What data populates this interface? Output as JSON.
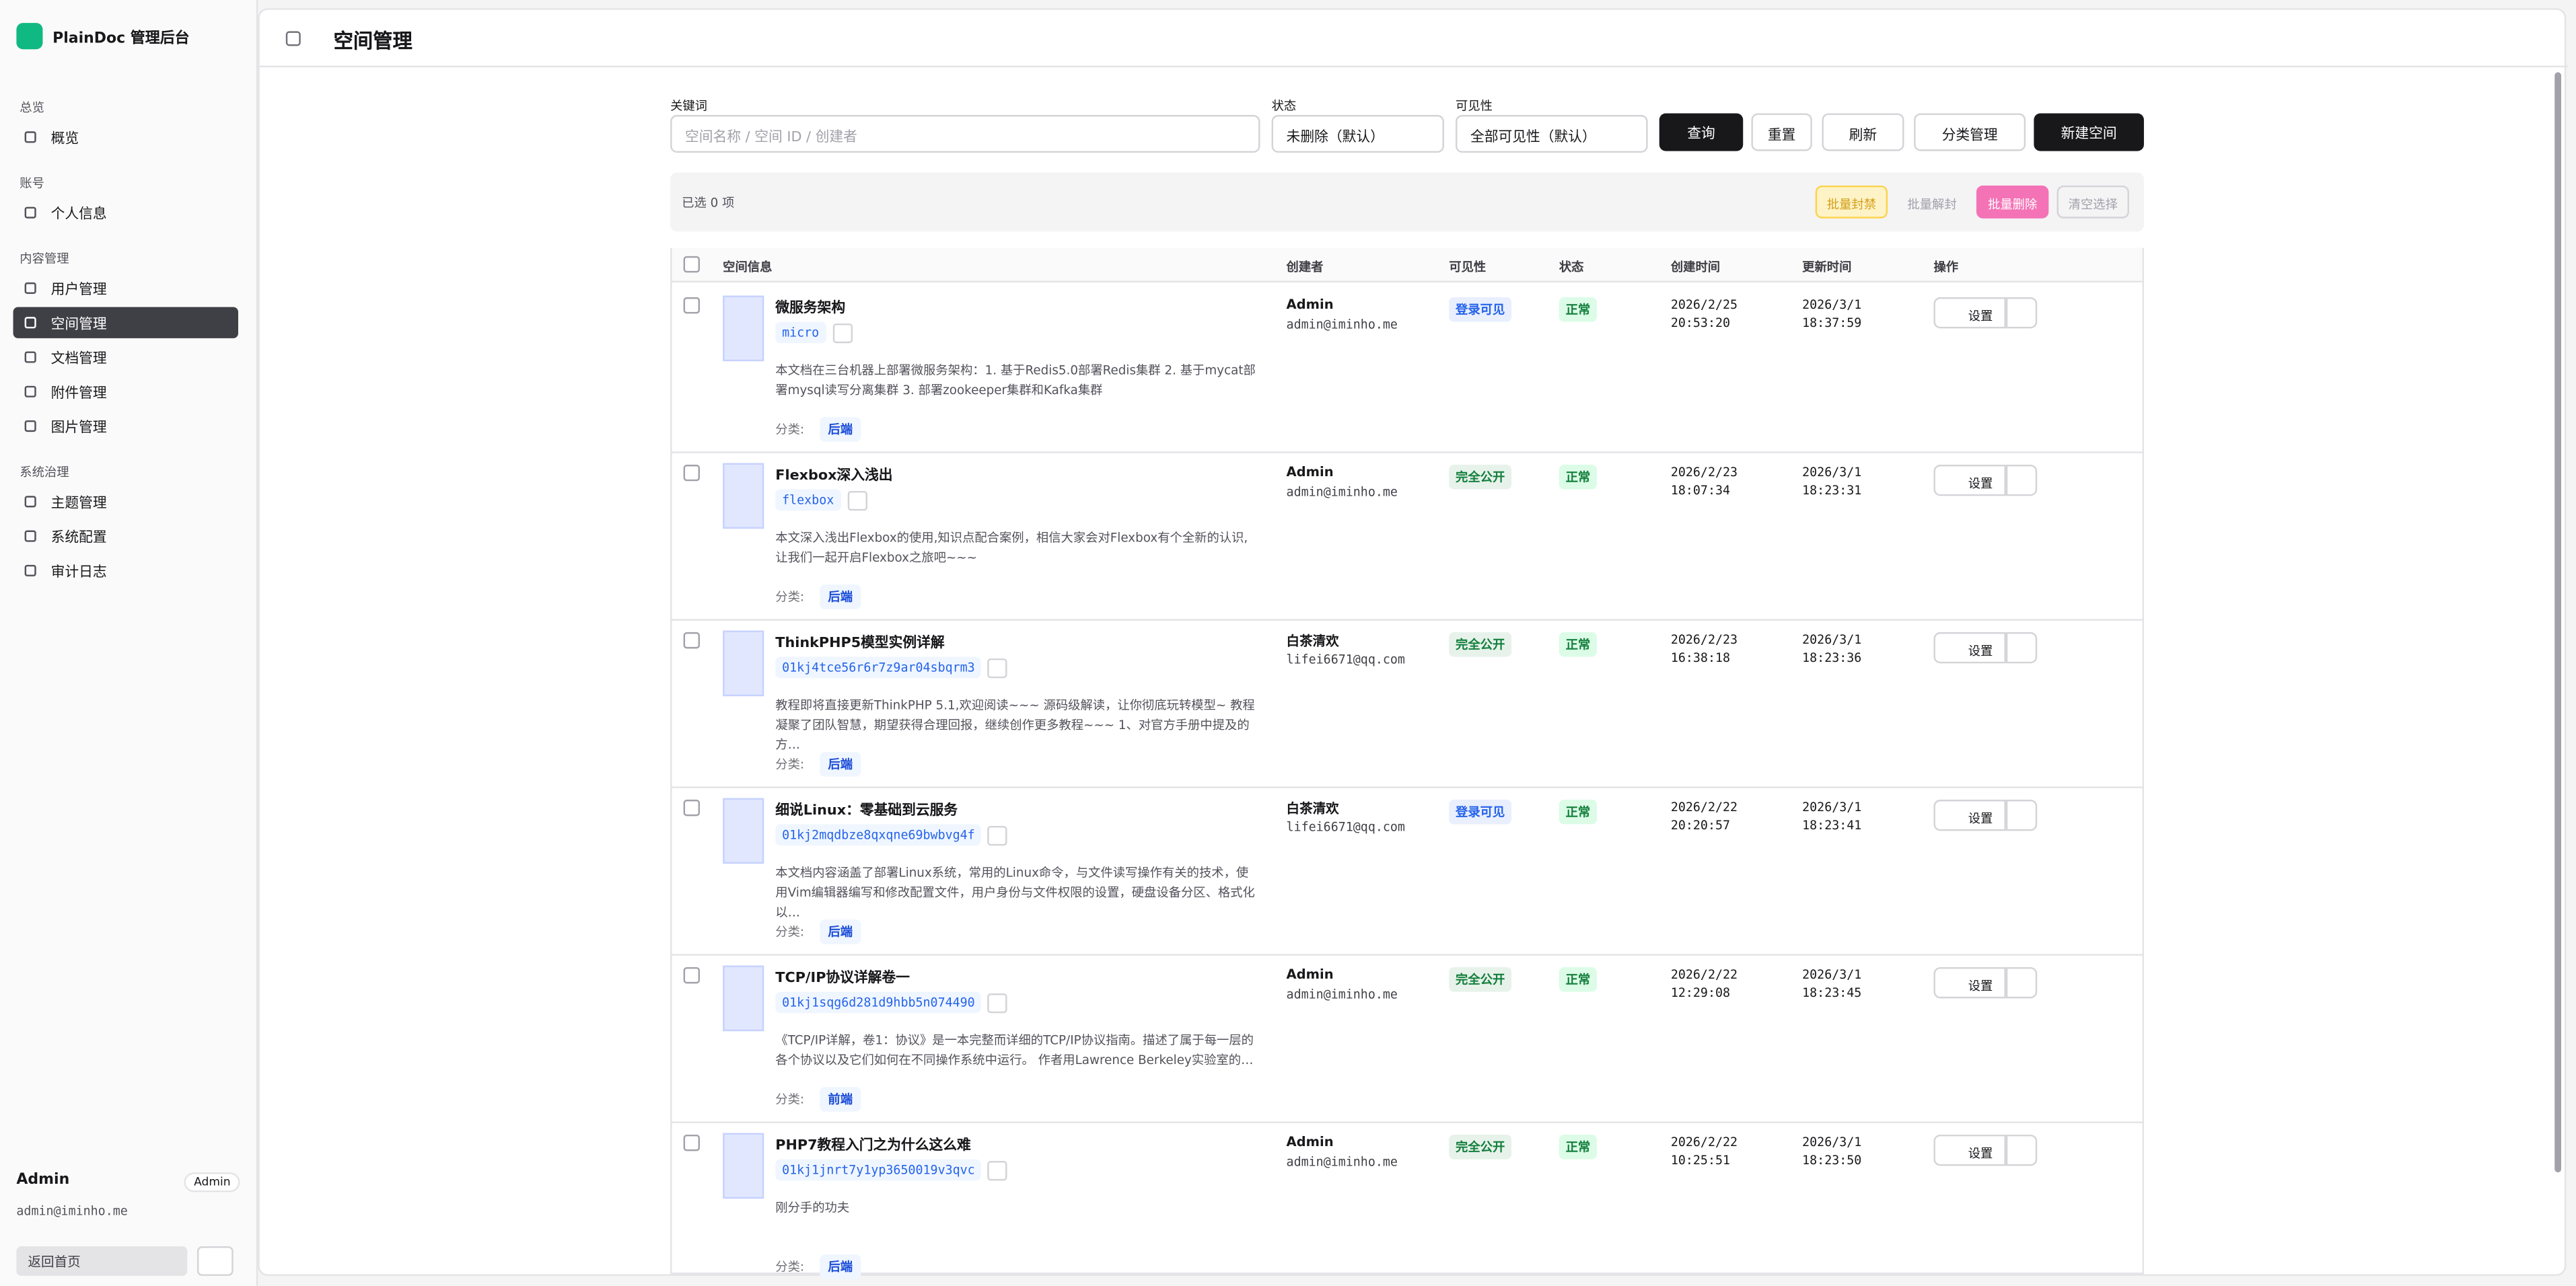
{
  "sidebar": {
    "brand": "PlainDoc 管理后台",
    "groups": [
      {
        "title": "总览",
        "items": [
          {
            "label": "概览",
            "active": false
          }
        ]
      },
      {
        "title": "账号",
        "items": [
          {
            "label": "个人信息",
            "active": false
          }
        ]
      },
      {
        "title": "内容管理",
        "items": [
          {
            "label": "用户管理",
            "active": false
          },
          {
            "label": "空间管理",
            "active": true
          },
          {
            "label": "文档管理",
            "active": false
          },
          {
            "label": "附件管理",
            "active": false
          },
          {
            "label": "图片管理",
            "active": false
          }
        ]
      },
      {
        "title": "系统治理",
        "items": [
          {
            "label": "主题管理",
            "active": false
          },
          {
            "label": "系统配置",
            "active": false
          },
          {
            "label": "审计日志",
            "active": false
          }
        ]
      }
    ],
    "user": {
      "name": "Admin",
      "role": "Admin",
      "email": "admin@iminho.me"
    },
    "back_home": "返回首页"
  },
  "header": {
    "title": "空间管理"
  },
  "filters": {
    "keyword_label": "关键词",
    "keyword_placeholder": "空间名称 / 空间 ID / 创建者",
    "status_label": "状态",
    "status_value": "未删除（默认）",
    "visibility_label": "可见性",
    "visibility_value": "全部可见性（默认）",
    "buttons": [
      "查询",
      "重置",
      "刷新",
      "分类管理",
      "新建空间"
    ]
  },
  "toolbar": {
    "selected": "已选 0 项",
    "actions": [
      "批量封禁",
      "批量解封",
      "批量删除",
      "清空选择"
    ]
  },
  "table": {
    "columns": [
      "空间信息",
      "创建者",
      "可见性",
      "状态",
      "创建时间",
      "更新时间",
      "操作"
    ],
    "category_label": "分类:",
    "rows": [
      {
        "title": "微服务架构",
        "slug": "micro",
        "description": "本文档在三台机器上部署微服务架构：1. 基于Redis5.0部署Redis集群 2. 基于mycat部署mysql读写分离集群 3. 部署zookeeper集群和Kafka集群",
        "category": "后端",
        "creator_name": "Admin",
        "creator_email": "admin@iminho.me",
        "visibility": "登录可见",
        "visibility_color": "#2563eb",
        "status": "正常",
        "created_date": "2026/2/25",
        "created_time": "20:53:20",
        "updated_date": "2026/3/1",
        "updated_time": "18:37:59",
        "action": "设置"
      },
      {
        "title": "Flexbox深入浅出",
        "slug": "flexbox",
        "description": "本文深入浅出Flexbox的使用,知识点配合案例，相信大家会对Flexbox有个全新的认识,让我们一起开启Flexbox之旅吧~~~",
        "category": "后端",
        "creator_name": "Admin",
        "creator_email": "admin@iminho.me",
        "visibility": "完全公开",
        "visibility_color": "#15803d",
        "status": "正常",
        "created_date": "2026/2/23",
        "created_time": "18:07:34",
        "updated_date": "2026/3/1",
        "updated_time": "18:23:31",
        "action": "设置"
      },
      {
        "title": "ThinkPHP5模型实例详解",
        "slug": "01kj4tce56r6r7z9ar04sbqrm3",
        "description": "教程即将直接更新ThinkPHP 5.1,欢迎阅读~~~ 源码级解读，让你彻底玩转模型~ 教程凝聚了团队智慧，期望获得合理回报，继续创作更多教程~~~ 1、对官方手册中提及的方…",
        "category": "后端",
        "creator_name": "白茶清欢",
        "creator_email": "lifei6671@qq.com",
        "visibility": "完全公开",
        "visibility_color": "#15803d",
        "status": "正常",
        "created_date": "2026/2/23",
        "created_time": "16:38:18",
        "updated_date": "2026/3/1",
        "updated_time": "18:23:36",
        "action": "设置"
      },
      {
        "title": "细说Linux：零基础到云服务",
        "slug": "01kj2mqdbze8qxqne69bwbvg4f",
        "description": "本文档内容涵盖了部署Linux系统，常用的Linux命令，与文件读写操作有关的技术，使用Vim编辑器编写和修改配置文件，用户身份与文件权限的设置，硬盘设备分区、格式化以…",
        "category": "后端",
        "creator_name": "白茶清欢",
        "creator_email": "lifei6671@qq.com",
        "visibility": "登录可见",
        "visibility_color": "#2563eb",
        "status": "正常",
        "created_date": "2026/2/22",
        "created_time": "20:20:57",
        "updated_date": "2026/3/1",
        "updated_time": "18:23:41",
        "action": "设置"
      },
      {
        "title": "TCP/IP协议详解卷一",
        "slug": "01kj1sqg6d281d9hbb5n074490",
        "description": "《TCP/IP详解，卷1：协议》是一本完整而详细的TCP/IP协议指南。描述了属于每一层的各个协议以及它们如何在不同操作系统中运行。 作者用Lawrence Berkeley实验室的…",
        "category": "前端",
        "creator_name": "Admin",
        "creator_email": "admin@iminho.me",
        "visibility": "完全公开",
        "visibility_color": "#15803d",
        "status": "正常",
        "created_date": "2026/2/22",
        "created_time": "12:29:08",
        "updated_date": "2026/3/1",
        "updated_time": "18:23:45",
        "action": "设置"
      },
      {
        "title": "PHP7教程入门之为什么这么难",
        "slug": "01kj1jnrt7y1yp3650019v3qvc",
        "description": "刚分手的功夫",
        "category": "后端",
        "creator_name": "Admin",
        "creator_email": "admin@iminho.me",
        "visibility": "完全公开",
        "visibility_color": "#15803d",
        "status": "正常",
        "created_date": "2026/2/22",
        "created_time": "10:25:51",
        "updated_date": "2026/3/1",
        "updated_time": "18:23:50",
        "action": "设置"
      }
    ]
  }
}
